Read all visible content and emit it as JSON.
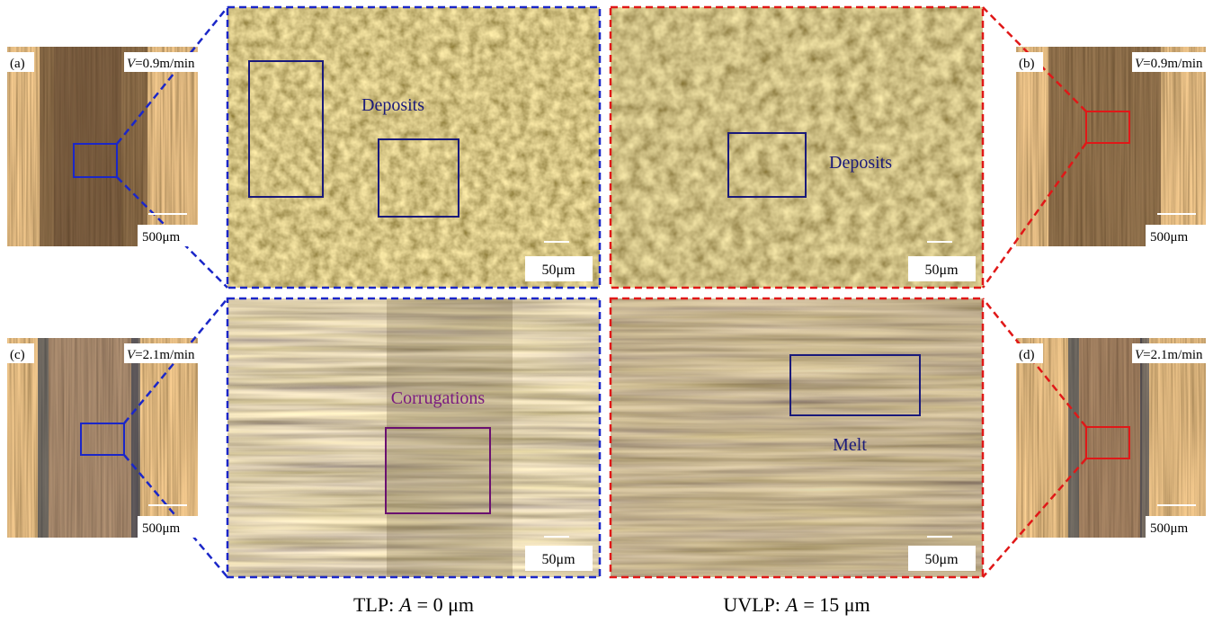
{
  "thumbnails": [
    {
      "label": "(a)",
      "speed": {
        "var": "V",
        "value": "=0.9m/min"
      },
      "scale": "500μm"
    },
    {
      "label": "(b)",
      "speed": {
        "var": "V",
        "value": "=0.9m/min"
      },
      "scale": "500μm"
    },
    {
      "label": "(c)",
      "speed": {
        "var": "V",
        "value": "=2.1m/min"
      },
      "scale": "500μm"
    },
    {
      "label": "(d)",
      "speed": {
        "var": "V",
        "value": "=2.1m/min"
      },
      "scale": "500μm"
    }
  ],
  "zooms": [
    {
      "annotation": "Deposits",
      "scale": "50μm"
    },
    {
      "annotation": "Deposits",
      "scale": "50μm"
    },
    {
      "annotation": "Corrugations",
      "scale": "50μm"
    },
    {
      "annotation": "Melt",
      "scale": "50μm"
    }
  ],
  "captions": [
    {
      "prefix": "TLP:",
      "var": "A",
      "suffix": "= 0 μm"
    },
    {
      "prefix": "UVLP:",
      "var": "A",
      "suffix": "= 15 μm"
    }
  ]
}
